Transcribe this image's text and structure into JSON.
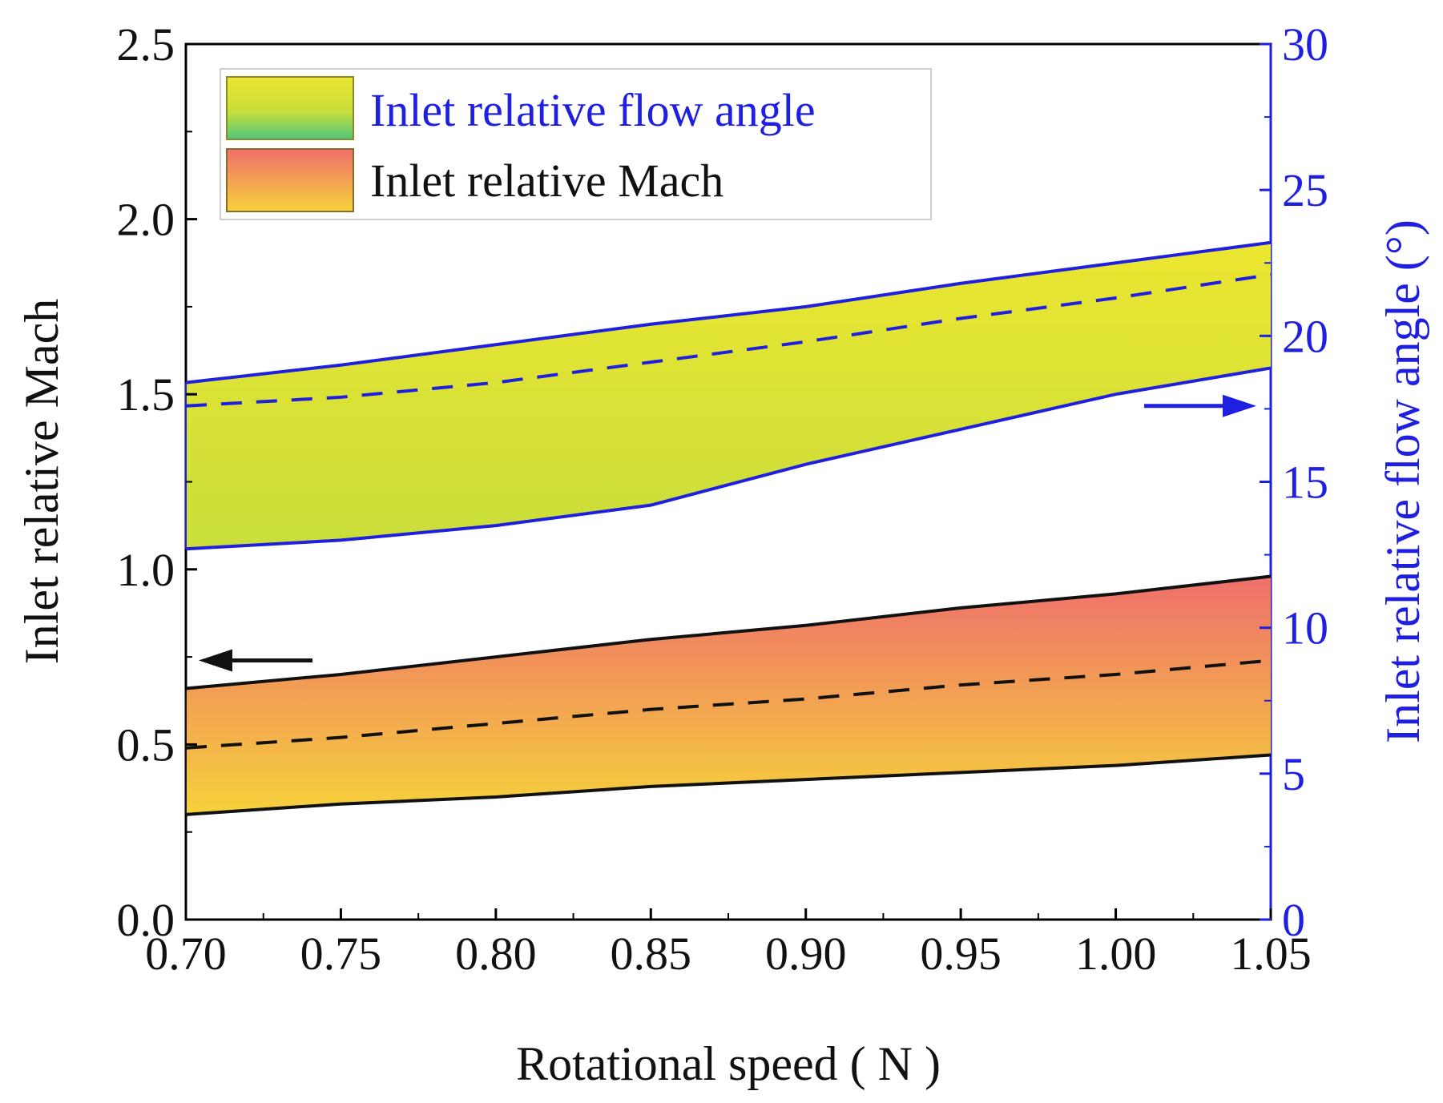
{
  "chart_data": {
    "type": "area",
    "title": "",
    "xlabel": "Rotational speed ( N )",
    "ylabel_left": "Inlet relative Mach",
    "ylabel_right": "Inlet relative flow angle (°)",
    "xlim": [
      0.7,
      1.05
    ],
    "ylim_left": [
      0.0,
      2.5
    ],
    "ylim_right": [
      0,
      30
    ],
    "x_ticks": [
      "0.70",
      "0.75",
      "0.80",
      "0.85",
      "0.90",
      "0.95",
      "1.00",
      "1.05"
    ],
    "y_left_ticks": [
      "0.0",
      "0.5",
      "1.0",
      "1.5",
      "2.0",
      "2.5"
    ],
    "y_right_ticks": [
      "0",
      "5",
      "10",
      "15",
      "20",
      "25",
      "30"
    ],
    "grid": false,
    "legend": {
      "position": "top-left",
      "entries": [
        {
          "label": "Inlet relative flow angle",
          "text_color": "#1f1fe0"
        },
        {
          "label": "Inlet relative Mach",
          "text_color": "#111111"
        }
      ]
    },
    "series": [
      {
        "name": "Inlet relative flow angle",
        "axis": "right",
        "x": [
          0.7,
          0.75,
          0.8,
          0.85,
          0.9,
          0.95,
          1.0,
          1.05
        ],
        "upper": [
          18.4,
          19.0,
          19.7,
          20.4,
          21.0,
          21.8,
          22.5,
          23.2
        ],
        "lower": [
          12.7,
          13.0,
          13.5,
          14.2,
          15.6,
          16.8,
          18.0,
          18.9
        ],
        "mean": [
          17.6,
          17.9,
          18.4,
          19.1,
          19.8,
          20.6,
          21.3,
          22.1
        ],
        "line_color": "#1f1fe0",
        "fill_top": "#ece630",
        "fill_bottom": "#c9de3c"
      },
      {
        "name": "Inlet relative Mach",
        "axis": "left",
        "x": [
          0.7,
          0.75,
          0.8,
          0.85,
          0.9,
          0.95,
          1.0,
          1.05
        ],
        "upper": [
          0.66,
          0.7,
          0.75,
          0.8,
          0.84,
          0.89,
          0.93,
          0.98
        ],
        "lower": [
          0.3,
          0.33,
          0.35,
          0.38,
          0.4,
          0.42,
          0.44,
          0.47
        ],
        "mean": [
          0.49,
          0.52,
          0.56,
          0.6,
          0.63,
          0.67,
          0.7,
          0.74
        ],
        "line_color": "#111111",
        "fill_top": "#ef6f6c",
        "fill_bottom": "#f6d23b"
      }
    ],
    "annotations": [
      {
        "type": "arrow",
        "direction": "left",
        "points_to": "left-axis",
        "y_left": 0.74,
        "color": "#111111"
      },
      {
        "type": "arrow",
        "direction": "right",
        "points_to": "right-axis",
        "y_right": 17.6,
        "color": "#1f1fe0"
      }
    ]
  }
}
